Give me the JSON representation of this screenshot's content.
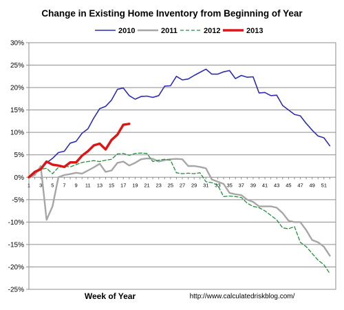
{
  "chart_data": {
    "type": "line",
    "title": "Change in Existing Home Inventory from Beginning of Year",
    "xlabel": "Week of Year",
    "ylabel": "",
    "source": "http://www.calculatedriskblog.com/",
    "x_ticks": [
      "1",
      "3",
      "5",
      "7",
      "9",
      "11",
      "13",
      "15",
      "17",
      "19",
      "21",
      "23",
      "25",
      "27",
      "29",
      "31",
      "33",
      "35",
      "37",
      "39",
      "41",
      "43",
      "45",
      "47",
      "49",
      "51"
    ],
    "y_ticks": [
      "30%",
      "25%",
      "20%",
      "15%",
      "10%",
      "5%",
      "0%",
      "-5%",
      "-10%",
      "-15%",
      "-20%",
      "-25%"
    ],
    "y_tick_values": [
      30,
      25,
      20,
      15,
      10,
      5,
      0,
      -5,
      -10,
      -15,
      -20,
      -25
    ],
    "xlim": [
      1,
      53
    ],
    "ylim": [
      -25,
      30
    ],
    "grid": true,
    "legend_position": "top",
    "series": [
      {
        "name": "2010",
        "color": "#2b2bb8",
        "dash": "solid",
        "x": [
          1,
          2,
          3,
          4,
          5,
          6,
          7,
          8,
          9,
          10,
          11,
          12,
          13,
          14,
          15,
          16,
          17,
          18,
          19,
          20,
          21,
          22,
          23,
          24,
          25,
          26,
          27,
          28,
          29,
          30,
          31,
          32,
          33,
          34,
          35,
          36,
          37,
          38,
          39,
          40,
          41,
          42,
          43,
          44,
          45,
          46,
          47,
          48,
          49,
          50,
          51,
          52
        ],
        "values": [
          0,
          0.8,
          1.8,
          3.2,
          4.2,
          5.5,
          5.8,
          7.6,
          8.0,
          9.8,
          10.8,
          13.2,
          15.3,
          15.8,
          17.2,
          19.6,
          19.9,
          18.2,
          17.4,
          18.0,
          18.1,
          17.8,
          18.2,
          20.3,
          20.4,
          22.5,
          21.7,
          21.9,
          22.7,
          23.4,
          24.1,
          23.0,
          23.0,
          23.5,
          23.8,
          22.0,
          22.7,
          22.3,
          22.4,
          18.8,
          18.9,
          18.2,
          18.3,
          16.0,
          15.0,
          14.0,
          13.7,
          12.0,
          10.5,
          9.2,
          8.8,
          7.0
        ]
      },
      {
        "name": "2011",
        "color": "#a6a6a6",
        "dash": "solid",
        "x": [
          1,
          2,
          3,
          4,
          5,
          6,
          7,
          8,
          9,
          10,
          11,
          12,
          13,
          14,
          15,
          16,
          17,
          18,
          19,
          20,
          21,
          22,
          23,
          24,
          25,
          26,
          27,
          28,
          29,
          30,
          31,
          32,
          33,
          34,
          35,
          36,
          37,
          38,
          39,
          40,
          41,
          42,
          43,
          44,
          45,
          46,
          47,
          48,
          49,
          50,
          51,
          52
        ],
        "values": [
          0,
          0.5,
          2.5,
          -9.5,
          -6.5,
          0.0,
          0.5,
          0.7,
          1.0,
          0.8,
          1.5,
          2.2,
          3.0,
          1.2,
          1.5,
          3.2,
          3.5,
          2.6,
          3.2,
          4.0,
          4.2,
          4.1,
          3.5,
          3.8,
          4.0,
          4.1,
          4.0,
          2.5,
          2.5,
          2.3,
          2.0,
          -0.5,
          -1.0,
          -1.5,
          -3.5,
          -3.8,
          -4.0,
          -5.0,
          -5.5,
          -6.5,
          -6.5,
          -6.5,
          -6.8,
          -8.0,
          -9.7,
          -10.0,
          -10.0,
          -11.8,
          -14.0,
          -14.5,
          -15.5,
          -17.5
        ]
      },
      {
        "name": "2012",
        "color": "#1f8f3a",
        "dash": "dashed",
        "x": [
          1,
          2,
          3,
          4,
          5,
          6,
          7,
          8,
          9,
          10,
          11,
          12,
          13,
          14,
          15,
          16,
          17,
          18,
          19,
          20,
          21,
          22,
          23,
          24,
          25,
          26,
          27,
          28,
          29,
          30,
          31,
          32,
          33,
          34,
          35,
          36,
          37,
          38,
          39,
          40,
          41,
          42,
          43,
          44,
          45,
          46,
          47,
          48,
          49,
          50,
          51,
          52
        ],
        "values": [
          0,
          1.2,
          1.8,
          2.0,
          0.8,
          2.2,
          2.5,
          2.3,
          2.8,
          3.3,
          3.5,
          3.7,
          3.5,
          3.8,
          4.0,
          5.2,
          5.3,
          4.9,
          5.3,
          5.4,
          5.3,
          3.5,
          3.8,
          4.0,
          3.8,
          1.0,
          0.8,
          0.9,
          0.8,
          1.0,
          -1.0,
          -1.2,
          -1.8,
          -4.3,
          -4.2,
          -4.3,
          -4.5,
          -5.8,
          -6.5,
          -6.8,
          -7.5,
          -8.5,
          -9.5,
          -11.3,
          -11.5,
          -11.0,
          -14.5,
          -15.5,
          -17.0,
          -18.5,
          -19.5,
          -21.5
        ]
      },
      {
        "name": "2013",
        "color": "#dd1515",
        "dash": "solid",
        "x": [
          1,
          2,
          3,
          4,
          5,
          6,
          7,
          8,
          9,
          10,
          11,
          12,
          13,
          14,
          15,
          16,
          17,
          18
        ],
        "values": [
          0,
          1.2,
          1.8,
          3.5,
          2.8,
          2.6,
          2.3,
          3.3,
          3.3,
          4.8,
          5.8,
          7.1,
          7.5,
          6.2,
          8.3,
          9.5,
          11.7,
          11.9
        ]
      }
    ]
  }
}
